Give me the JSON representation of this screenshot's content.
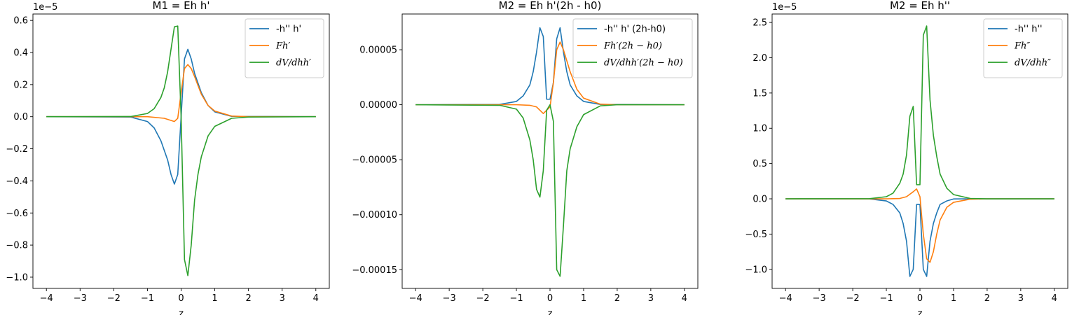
{
  "chart_data": [
    {
      "type": "line",
      "title": "M1 = Eh h'",
      "xlabel": "z",
      "ylabel": "",
      "offset_text": "1e−5",
      "xlim": [
        -4.4,
        4.4
      ],
      "ylim": [
        -1.07,
        0.64
      ],
      "xticks": [
        -4,
        -3,
        -2,
        -1,
        0,
        1,
        2,
        3,
        4
      ],
      "xtick_labels": [
        "−4",
        "−3",
        "−2",
        "−1",
        "0",
        "1",
        "2",
        "3",
        "4"
      ],
      "yticks": [
        -1.0,
        -0.8,
        -0.6,
        -0.4,
        -0.2,
        0.0,
        0.2,
        0.4,
        0.6
      ],
      "ytick_labels": [
        "−1.0",
        "−0.8",
        "−0.6",
        "−0.4",
        "−0.2",
        "0.0",
        "0.2",
        "0.4",
        "0.6"
      ],
      "legend_position": "top-right",
      "grid": false,
      "series": [
        {
          "name": "-h'' h'",
          "color": "#1f77b4",
          "x": [
            -4,
            -1.5,
            -1,
            -0.8,
            -0.6,
            -0.4,
            -0.3,
            -0.2,
            -0.1,
            0,
            0.1,
            0.2,
            0.3,
            0.4,
            0.6,
            0.8,
            1,
            1.5,
            4
          ],
          "y": [
            0,
            -0.002,
            -0.03,
            -0.07,
            -0.15,
            -0.27,
            -0.36,
            -0.42,
            -0.36,
            0,
            0.36,
            0.42,
            0.36,
            0.27,
            0.15,
            0.07,
            0.03,
            0.002,
            0
          ]
        },
        {
          "name": "Fh′",
          "color": "#ff7f0e",
          "x": [
            -4,
            -1,
            -0.5,
            -0.2,
            -0.1,
            0,
            0.1,
            0.2,
            0.3,
            0.4,
            0.6,
            0.8,
            1,
            1.5,
            2,
            4
          ],
          "y": [
            0,
            0,
            -0.01,
            -0.03,
            -0.01,
            0.15,
            0.3,
            0.325,
            0.3,
            0.25,
            0.14,
            0.07,
            0.035,
            0.004,
            0,
            0
          ]
        },
        {
          "name": "dV/dhh′",
          "color": "#2ca02c",
          "x": [
            -4,
            -1.5,
            -1,
            -0.8,
            -0.6,
            -0.5,
            -0.4,
            -0.3,
            -0.2,
            -0.1,
            0,
            0.1,
            0.2,
            0.3,
            0.4,
            0.5,
            0.6,
            0.8,
            1,
            1.5,
            2,
            4
          ],
          "y": [
            0,
            0.001,
            0.02,
            0.05,
            0.12,
            0.18,
            0.28,
            0.42,
            0.56,
            0.565,
            0,
            -0.89,
            -0.99,
            -0.8,
            -0.52,
            -0.36,
            -0.25,
            -0.12,
            -0.06,
            -0.01,
            -0.002,
            0
          ]
        }
      ]
    },
    {
      "type": "line",
      "title": "M2 = Eh h'(2h - h0)",
      "xlabel": "z",
      "ylabel": "",
      "offset_text": "",
      "xlim": [
        -4.4,
        4.4
      ],
      "ylim": [
        -0.000167,
        8.25e-05
      ],
      "xticks": [
        -4,
        -3,
        -2,
        -1,
        0,
        1,
        2,
        3,
        4
      ],
      "xtick_labels": [
        "−4",
        "−3",
        "−2",
        "−1",
        "0",
        "1",
        "2",
        "3",
        "4"
      ],
      "yticks": [
        -0.00015,
        -0.0001,
        -5e-05,
        0,
        5e-05
      ],
      "ytick_labels": [
        "−0.00015",
        "−0.00010",
        "−0.00005",
        "0.00000",
        "0.00005"
      ],
      "legend_position": "top-right",
      "grid": false,
      "series": [
        {
          "name": "-h'' h' (2h-h0)",
          "color": "#1f77b4",
          "x": [
            -4,
            -1.5,
            -1,
            -0.8,
            -0.6,
            -0.5,
            -0.4,
            -0.3,
            -0.2,
            -0.1,
            0,
            0.1,
            0.2,
            0.3,
            0.4,
            0.5,
            0.6,
            0.8,
            1,
            1.5,
            4
          ],
          "y": [
            0,
            3e-07,
            3e-06,
            8e-06,
            1.8e-05,
            3e-05,
            4.8e-05,
            7e-05,
            6.2e-05,
            5e-06,
            5e-06,
            2e-05,
            6e-05,
            7e-05,
            4.8e-05,
            3e-05,
            1.8e-05,
            8e-06,
            3e-06,
            3e-07,
            0
          ]
        },
        {
          "name": "Fh′(2h − h0)",
          "color": "#ff7f0e",
          "x": [
            -4,
            -1,
            -0.6,
            -0.4,
            -0.2,
            0,
            0.1,
            0.2,
            0.3,
            0.4,
            0.6,
            0.8,
            1,
            1.5,
            2,
            4
          ],
          "y": [
            0,
            0,
            -5e-07,
            -2e-06,
            -8e-06,
            -2e-06,
            2e-05,
            5e-05,
            5.7e-05,
            5e-05,
            3e-05,
            1.4e-05,
            6e-06,
            5e-07,
            0,
            0
          ]
        },
        {
          "name": "dV/dhh′(2h − h0)",
          "color": "#2ca02c",
          "x": [
            -4,
            -1.5,
            -1,
            -0.8,
            -0.6,
            -0.5,
            -0.4,
            -0.3,
            -0.2,
            -0.1,
            0,
            0.1,
            0.2,
            0.3,
            0.4,
            0.5,
            0.6,
            0.8,
            1,
            1.5,
            2,
            4
          ],
          "y": [
            0,
            -5e-07,
            -4e-06,
            -1.2e-05,
            -3.2e-05,
            -5e-05,
            -7.7e-05,
            -8.4e-05,
            -6e-05,
            -5e-06,
            0,
            -1.5e-05,
            -0.00015,
            -0.000156,
            -0.00011,
            -6e-05,
            -4e-05,
            -2e-05,
            -9e-06,
            -1e-06,
            0,
            0
          ]
        }
      ]
    },
    {
      "type": "line",
      "title": "M2 = Eh h''",
      "xlabel": "z",
      "ylabel": "",
      "offset_text": "1e−5",
      "xlim": [
        -4.4,
        4.4
      ],
      "ylim": [
        -1.27,
        2.62
      ],
      "xticks": [
        -4,
        -3,
        -2,
        -1,
        0,
        1,
        2,
        3,
        4
      ],
      "xtick_labels": [
        "−4",
        "−3",
        "−2",
        "−1",
        "0",
        "1",
        "2",
        "3",
        "4"
      ],
      "yticks": [
        -1.0,
        -0.5,
        0.0,
        0.5,
        1.0,
        1.5,
        2.0,
        2.5
      ],
      "ytick_labels": [
        "−1.0",
        "−0.5",
        "0.0",
        "0.5",
        "1.0",
        "1.5",
        "2.0",
        "2.5"
      ],
      "legend_position": "top-right",
      "grid": false,
      "series": [
        {
          "name": "-h'' h''",
          "color": "#1f77b4",
          "x": [
            -4,
            -1.5,
            -1,
            -0.8,
            -0.6,
            -0.5,
            -0.4,
            -0.3,
            -0.2,
            -0.1,
            0,
            0.1,
            0.2,
            0.3,
            0.4,
            0.5,
            0.6,
            0.8,
            1,
            1.5,
            4
          ],
          "y": [
            0,
            -0.002,
            -0.03,
            -0.08,
            -0.2,
            -0.35,
            -0.6,
            -1.1,
            -1.0,
            -0.08,
            -0.08,
            -1.0,
            -1.1,
            -0.6,
            -0.35,
            -0.2,
            -0.08,
            -0.03,
            -0.002,
            0,
            0
          ]
        },
        {
          "name": "Fh″",
          "color": "#ff7f0e",
          "x": [
            -4,
            -1,
            -0.6,
            -0.4,
            -0.2,
            -0.1,
            0,
            0.1,
            0.2,
            0.3,
            0.4,
            0.5,
            0.6,
            0.8,
            1,
            1.5,
            2,
            4
          ],
          "y": [
            0,
            0,
            0.005,
            0.03,
            0.1,
            0.14,
            0.03,
            -0.5,
            -0.85,
            -0.9,
            -0.75,
            -0.5,
            -0.3,
            -0.12,
            -0.05,
            -0.005,
            0,
            0
          ]
        },
        {
          "name": "dV/dhh″",
          "color": "#2ca02c",
          "x": [
            -4,
            -1.5,
            -1,
            -0.8,
            -0.6,
            -0.5,
            -0.4,
            -0.3,
            -0.2,
            -0.1,
            0,
            0.1,
            0.2,
            0.3,
            0.4,
            0.5,
            0.6,
            0.8,
            1,
            1.5,
            2,
            4
          ],
          "y": [
            0,
            0.002,
            0.03,
            0.08,
            0.22,
            0.35,
            0.62,
            1.17,
            1.31,
            0.2,
            0.2,
            2.32,
            2.45,
            1.4,
            0.9,
            0.6,
            0.35,
            0.15,
            0.06,
            0.005,
            0,
            0
          ]
        }
      ]
    }
  ]
}
